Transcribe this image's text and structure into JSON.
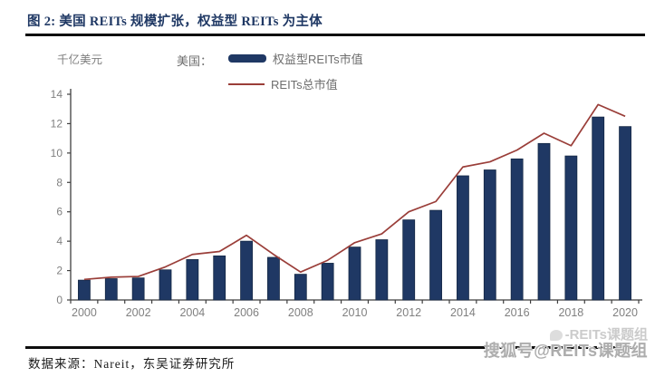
{
  "header": {
    "title": "图 2:  美国 REITs 规模扩张，权益型 REITs 为主体"
  },
  "chart_data": {
    "type": "bar",
    "unit_label": "千亿美元",
    "legend_prefix": "美国：",
    "legend_position": "top-center",
    "grid": false,
    "categories": [
      "2000",
      "2001",
      "2002",
      "2003",
      "2004",
      "2005",
      "2006",
      "2007",
      "2008",
      "2009",
      "2010",
      "2011",
      "2012",
      "2013",
      "2014",
      "2015",
      "2016",
      "2017",
      "2018",
      "2019",
      "2020"
    ],
    "x_axis_labels": [
      "2000",
      "2002",
      "2004",
      "2006",
      "2008",
      "2010",
      "2012",
      "2014",
      "2016",
      "2018",
      "2020"
    ],
    "ylim": [
      0,
      14
    ],
    "y_ticks": [
      0,
      2,
      4,
      6,
      8,
      10,
      12,
      14
    ],
    "series": [
      {
        "name": "权益型REITs市值",
        "type": "bar",
        "color": "#1f3864",
        "values": [
          1.35,
          1.45,
          1.5,
          2.05,
          2.75,
          3.0,
          4.0,
          2.9,
          1.75,
          2.5,
          3.6,
          4.1,
          5.45,
          6.1,
          8.45,
          8.85,
          9.6,
          10.65,
          9.8,
          12.45,
          11.8
        ]
      },
      {
        "name": "REITs总市值",
        "type": "line",
        "color": "#9a3e39",
        "values": [
          1.4,
          1.55,
          1.6,
          2.25,
          3.1,
          3.3,
          4.4,
          3.1,
          1.9,
          2.7,
          3.9,
          4.5,
          6.0,
          6.7,
          9.05,
          9.4,
          10.2,
          11.35,
          10.5,
          13.3,
          12.5
        ]
      }
    ],
    "axis_color": "#3f3f3f",
    "tick_label_color": "#808080"
  },
  "footer": {
    "source": "数据来源：Nareit，东吴证券研究所"
  },
  "watermark": {
    "line1": "-REITs课题组",
    "line2": "搜狐号@REITs课题组"
  }
}
